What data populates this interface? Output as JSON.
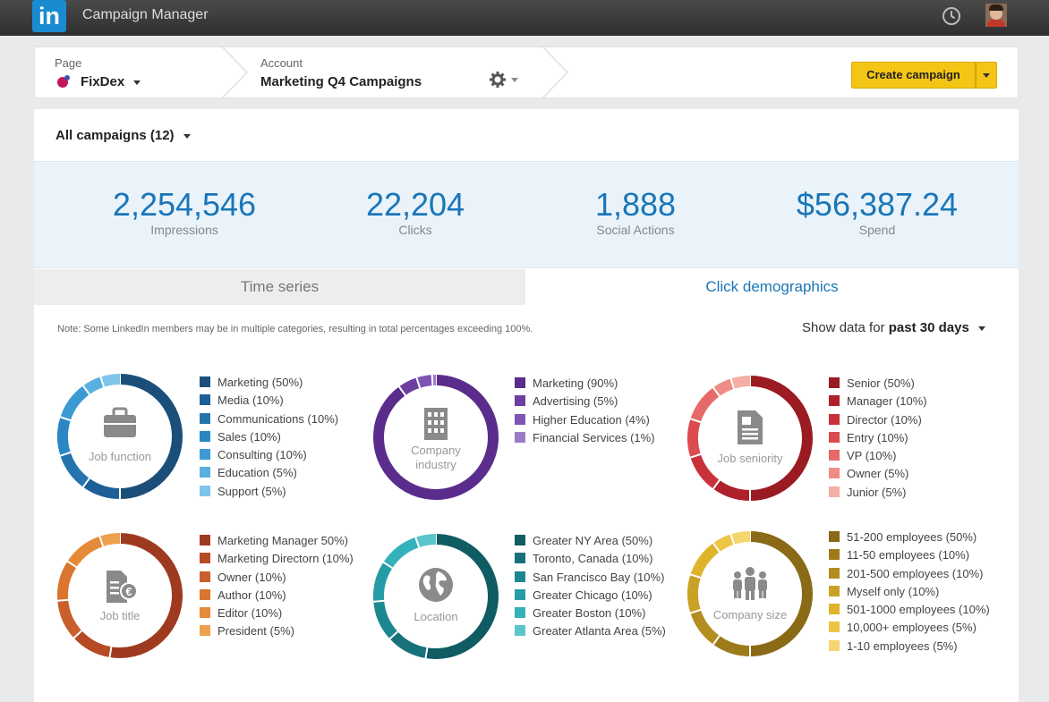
{
  "app": {
    "logo": "in",
    "title": "Campaign Manager"
  },
  "breadcrumb": {
    "page_label": "Page",
    "page_value": "FixDex",
    "account_label": "Account",
    "account_value": "Marketing Q4 Campaigns",
    "create_label": "Create campaign"
  },
  "filter": {
    "label": "All campaigns (12)"
  },
  "stats": [
    {
      "value": "2,254,546",
      "label": "Impressions"
    },
    {
      "value": "22,204",
      "label": "Clicks"
    },
    {
      "value": "1,888",
      "label": "Social Actions"
    },
    {
      "value": "$56,387.24",
      "label": "Spend"
    }
  ],
  "tabs": {
    "time_series": "Time series",
    "click_demographics": "Click demographics"
  },
  "note": "Note: Some LinkedIn members may be in multiple categories, resulting in total percentages exceeding 100%.",
  "period": {
    "prefix": "Show data for",
    "value": "past 30 days"
  },
  "demographics": [
    {
      "key": "job-function",
      "title": "Job function",
      "icon": "briefcase-icon",
      "colors": [
        "#1b4f7a",
        "#1d5f96",
        "#2474ae",
        "#2a87c4",
        "#3b9ad3",
        "#59afdf",
        "#7ec5ea"
      ],
      "items": [
        {
          "label": "Marketing (50%)",
          "value": 50
        },
        {
          "label": "Media (10%)",
          "value": 10
        },
        {
          "label": "Communications (10%)",
          "value": 10
        },
        {
          "label": "Sales (10%)",
          "value": 10
        },
        {
          "label": "Consulting (10%)",
          "value": 10
        },
        {
          "label": "Education (5%)",
          "value": 5
        },
        {
          "label": "Support (5%)",
          "value": 5
        }
      ]
    },
    {
      "key": "company-industry",
      "title": "Company industry",
      "icon": "building-icon",
      "colors": [
        "#5a2d8c",
        "#6b3ea0",
        "#7f55b4",
        "#9c7ac8"
      ],
      "items": [
        {
          "label": "Marketing (90%)",
          "value": 90
        },
        {
          "label": "Advertising (5%)",
          "value": 5
        },
        {
          "label": "Higher Education (4%)",
          "value": 4
        },
        {
          "label": "Financial Services (1%)",
          "value": 1
        }
      ]
    },
    {
      "key": "job-seniority",
      "title": "Job seniority",
      "icon": "document-icon",
      "colors": [
        "#9a1b22",
        "#b0202a",
        "#c9313a",
        "#db4b4f",
        "#e76a6a",
        "#ef8c86",
        "#f4aea6"
      ],
      "items": [
        {
          "label": "Senior (50%)",
          "value": 50
        },
        {
          "label": "Manager (10%)",
          "value": 10
        },
        {
          "label": "Director (10%)",
          "value": 10
        },
        {
          "label": "Entry (10%)",
          "value": 10
        },
        {
          "label": "VP (10%)",
          "value": 10
        },
        {
          "label": "Owner (5%)",
          "value": 5
        },
        {
          "label": "Junior (5%)",
          "value": 5
        }
      ]
    },
    {
      "key": "job-title",
      "title": "Job title",
      "icon": "title-doc-icon",
      "colors": [
        "#9e3a1f",
        "#b54a25",
        "#c95f2b",
        "#d9752f",
        "#e58a36",
        "#eda04e"
      ],
      "items": [
        {
          "label": "Marketing Manager 50%)",
          "value": 50
        },
        {
          "label": "Marketing Directorn (10%)",
          "value": 10
        },
        {
          "label": "Owner (10%)",
          "value": 10
        },
        {
          "label": "Author (10%)",
          "value": 10
        },
        {
          "label": "Editor (10%)",
          "value": 10
        },
        {
          "label": "President (5%)",
          "value": 5
        }
      ]
    },
    {
      "key": "location",
      "title": "Location",
      "icon": "globe-icon",
      "colors": [
        "#0f5c63",
        "#16717a",
        "#1d8791",
        "#259ca6",
        "#33b2bb",
        "#5ac6cc"
      ],
      "items": [
        {
          "label": "Greater NY Area (50%)",
          "value": 50
        },
        {
          "label": "Toronto, Canada (10%)",
          "value": 10
        },
        {
          "label": "San Francisco Bay (10%)",
          "value": 10
        },
        {
          "label": "Greater Chicago (10%)",
          "value": 10
        },
        {
          "label": "Greater Boston (10%)",
          "value": 10
        },
        {
          "label": "Greater Atlanta Area (5%)",
          "value": 5
        }
      ]
    },
    {
      "key": "company-size",
      "title": "Company size",
      "icon": "people-icon",
      "colors": [
        "#8a6a16",
        "#9e7b1a",
        "#b38d1f",
        "#c9a124",
        "#e0b42a",
        "#eec445",
        "#f5d56e"
      ],
      "items": [
        {
          "label": "51-200 employees (50%)",
          "value": 50
        },
        {
          "label": "11-50 employees (10%)",
          "value": 10
        },
        {
          "label": "201-500 employees (10%)",
          "value": 10
        },
        {
          "label": "Myself only (10%)",
          "value": 10
        },
        {
          "label": "501-1000 employees (10%)",
          "value": 10
        },
        {
          "label": "10,000+ employees (5%)",
          "value": 5
        },
        {
          "label": "1-10 employees (5%)",
          "value": 5
        }
      ]
    }
  ]
}
